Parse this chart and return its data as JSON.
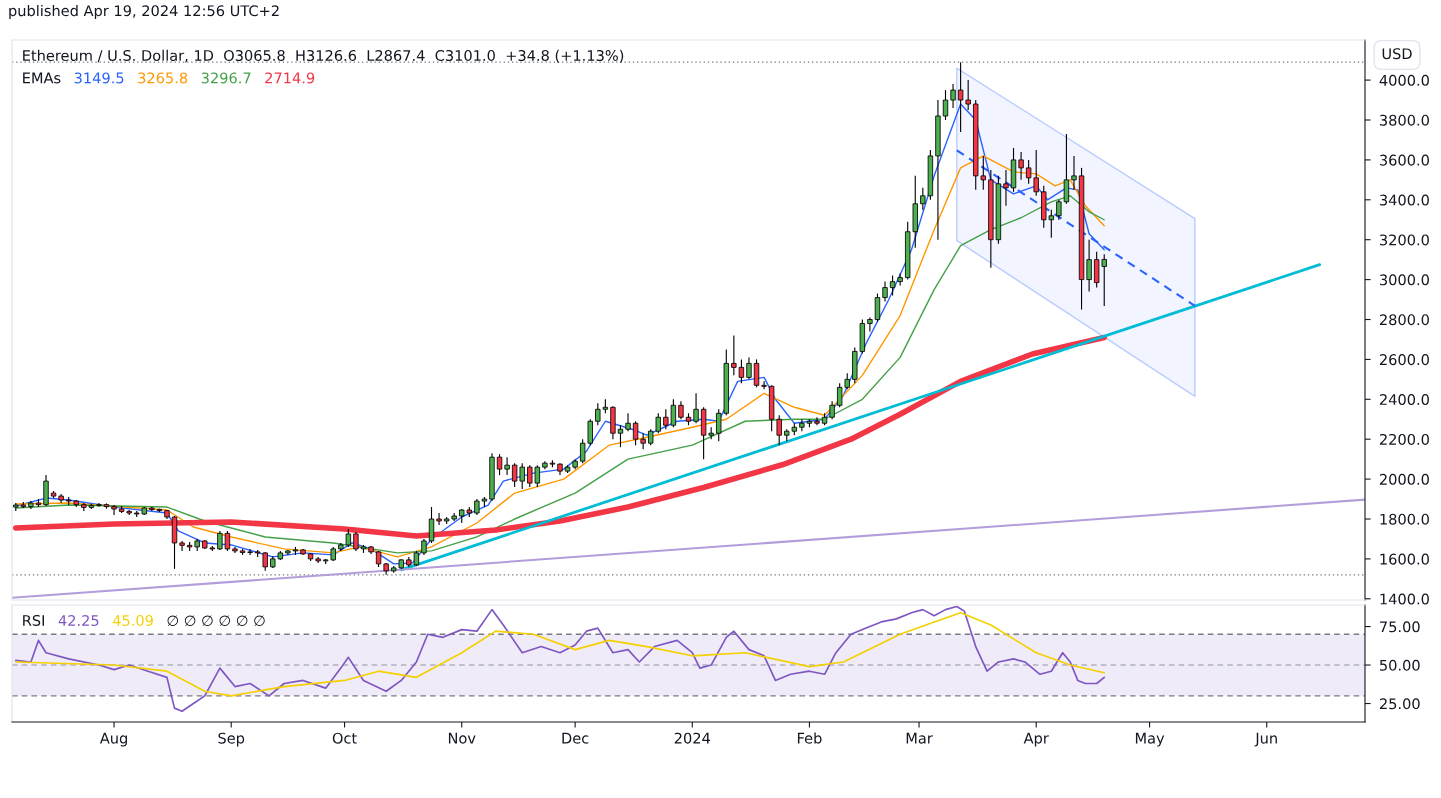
{
  "chart_data": [
    {
      "type": "candlestick",
      "title": "Ethereum / U.S. Dollar, 1D  O3065.8  H3126.6  L2867.4  C3101.0  +34.8 (+1.13%)",
      "legend_title": "EMAs",
      "legend": "top left",
      "grid": false,
      "tick_labels": "y",
      "annotations": [
        "USD",
        "published Apr 19, 2024 12:56 UTC+2"
      ],
      "xlim": [
        "2023-07-05",
        "2024-06-27"
      ],
      "ylim": [
        1394,
        4201
      ],
      "yticks": [
        {
          "value": 1400,
          "label": "1400.0"
        },
        {
          "value": 1600,
          "label": "1600.0"
        },
        {
          "value": 1800,
          "label": "1800.0"
        },
        {
          "value": 2000,
          "label": "2000.0"
        },
        {
          "value": 2200,
          "label": "2200.0"
        },
        {
          "value": 2400,
          "label": "2400.0"
        },
        {
          "value": 2600,
          "label": "2600.0"
        },
        {
          "value": 2800,
          "label": "2800.0"
        },
        {
          "value": 3000,
          "label": "3000.0"
        },
        {
          "value": 3200,
          "label": "3200.0"
        },
        {
          "value": 3400,
          "label": "3400.0"
        },
        {
          "value": 3600,
          "label": "3600.0"
        },
        {
          "value": 3800,
          "label": "3800.0"
        },
        {
          "value": 4000,
          "label": "4000.0"
        }
      ],
      "ref_lines": [
        {
          "axis": "y",
          "value": 4090,
          "line_style": "dotted",
          "color": "#787b86"
        },
        {
          "axis": "y",
          "value": 1520,
          "line_style": "dotted",
          "color": "#787b86"
        }
      ],
      "x": [
        "2023-07-06",
        "2023-07-08",
        "2023-07-10",
        "2023-07-12",
        "2023-07-14",
        "2023-07-16",
        "2023-07-18",
        "2023-07-20",
        "2023-07-22",
        "2023-07-24",
        "2023-07-26",
        "2023-07-28",
        "2023-07-30",
        "2023-08-01",
        "2023-08-03",
        "2023-08-05",
        "2023-08-07",
        "2023-08-09",
        "2023-08-11",
        "2023-08-13",
        "2023-08-15",
        "2023-08-17",
        "2023-08-19",
        "2023-08-21",
        "2023-08-23",
        "2023-08-25",
        "2023-08-27",
        "2023-08-29",
        "2023-08-31",
        "2023-09-02",
        "2023-09-04",
        "2023-09-06",
        "2023-09-08",
        "2023-09-10",
        "2023-09-12",
        "2023-09-14",
        "2023-09-16",
        "2023-09-18",
        "2023-09-20",
        "2023-09-22",
        "2023-09-24",
        "2023-09-26",
        "2023-09-28",
        "2023-09-30",
        "2023-10-02",
        "2023-10-04",
        "2023-10-06",
        "2023-10-08",
        "2023-10-10",
        "2023-10-12",
        "2023-10-14",
        "2023-10-16",
        "2023-10-18",
        "2023-10-20",
        "2023-10-22",
        "2023-10-24",
        "2023-10-26",
        "2023-10-28",
        "2023-10-30",
        "2023-11-01",
        "2023-11-03",
        "2023-11-05",
        "2023-11-07",
        "2023-11-09",
        "2023-11-11",
        "2023-11-13",
        "2023-11-15",
        "2023-11-17",
        "2023-11-19",
        "2023-11-21",
        "2023-11-23",
        "2023-11-25",
        "2023-11-27",
        "2023-11-29",
        "2023-12-01",
        "2023-12-03",
        "2023-12-05",
        "2023-12-07",
        "2023-12-09",
        "2023-12-11",
        "2023-12-13",
        "2023-12-15",
        "2023-12-17",
        "2023-12-19",
        "2023-12-21",
        "2023-12-23",
        "2023-12-25",
        "2023-12-27",
        "2023-12-29",
        "2023-12-31",
        "2024-01-02",
        "2024-01-04",
        "2024-01-06",
        "2024-01-08",
        "2024-01-10",
        "2024-01-12",
        "2024-01-14",
        "2024-01-16",
        "2024-01-18",
        "2024-01-20",
        "2024-01-22",
        "2024-01-24",
        "2024-01-26",
        "2024-01-28",
        "2024-01-30",
        "2024-02-01",
        "2024-02-03",
        "2024-02-05",
        "2024-02-07",
        "2024-02-09",
        "2024-02-11",
        "2024-02-13",
        "2024-02-15",
        "2024-02-17",
        "2024-02-19",
        "2024-02-21",
        "2024-02-23",
        "2024-02-25",
        "2024-02-27",
        "2024-02-29",
        "2024-03-02",
        "2024-03-04",
        "2024-03-06",
        "2024-03-08",
        "2024-03-10",
        "2024-03-12",
        "2024-03-14",
        "2024-03-16",
        "2024-03-18",
        "2024-03-20",
        "2024-03-22",
        "2024-03-24",
        "2024-03-26",
        "2024-03-28",
        "2024-03-30",
        "2024-04-01",
        "2024-04-03",
        "2024-04-05",
        "2024-04-07",
        "2024-04-09",
        "2024-04-11",
        "2024-04-13",
        "2024-04-15",
        "2024-04-17",
        "2024-04-19"
      ],
      "ohlc": [
        [
          1860,
          1880,
          1840,
          1870
        ],
        [
          1870,
          1885,
          1855,
          1862
        ],
        [
          1862,
          1890,
          1850,
          1880
        ],
        [
          1880,
          1900,
          1860,
          1872
        ],
        [
          1872,
          2020,
          1865,
          1990
        ],
        [
          1930,
          1940,
          1905,
          1915
        ],
        [
          1915,
          1925,
          1880,
          1895
        ],
        [
          1895,
          1910,
          1870,
          1890
        ],
        [
          1890,
          1895,
          1860,
          1872
        ],
        [
          1872,
          1880,
          1840,
          1858
        ],
        [
          1858,
          1875,
          1850,
          1868
        ],
        [
          1868,
          1880,
          1862,
          1872
        ],
        [
          1872,
          1878,
          1852,
          1862
        ],
        [
          1862,
          1870,
          1820,
          1850
        ],
        [
          1850,
          1865,
          1830,
          1838
        ],
        [
          1838,
          1845,
          1820,
          1830
        ],
        [
          1830,
          1840,
          1810,
          1825
        ],
        [
          1825,
          1860,
          1820,
          1855
        ],
        [
          1855,
          1860,
          1840,
          1848
        ],
        [
          1848,
          1852,
          1835,
          1842
        ],
        [
          1842,
          1845,
          1800,
          1810
        ],
        [
          1810,
          1815,
          1550,
          1680
        ],
        [
          1680,
          1690,
          1640,
          1668
        ],
        [
          1668,
          1685,
          1640,
          1660
        ],
        [
          1660,
          1700,
          1640,
          1690
        ],
        [
          1690,
          1695,
          1650,
          1655
        ],
        [
          1655,
          1665,
          1640,
          1650
        ],
        [
          1650,
          1740,
          1645,
          1728
        ],
        [
          1728,
          1740,
          1640,
          1650
        ],
        [
          1650,
          1660,
          1630,
          1640
        ],
        [
          1640,
          1650,
          1620,
          1632
        ],
        [
          1632,
          1650,
          1620,
          1635
        ],
        [
          1635,
          1645,
          1610,
          1630
        ],
        [
          1630,
          1635,
          1540,
          1560
        ],
        [
          1560,
          1615,
          1555,
          1600
        ],
        [
          1600,
          1640,
          1595,
          1630
        ],
        [
          1630,
          1645,
          1620,
          1640
        ],
        [
          1640,
          1660,
          1620,
          1645
        ],
        [
          1645,
          1650,
          1620,
          1625
        ],
        [
          1625,
          1630,
          1590,
          1600
        ],
        [
          1600,
          1610,
          1580,
          1590
        ],
        [
          1590,
          1600,
          1575,
          1595
        ],
        [
          1595,
          1660,
          1590,
          1650
        ],
        [
          1650,
          1680,
          1640,
          1670
        ],
        [
          1670,
          1750,
          1660,
          1725
        ],
        [
          1725,
          1735,
          1640,
          1650
        ],
        [
          1650,
          1670,
          1630,
          1660
        ],
        [
          1660,
          1665,
          1625,
          1635
        ],
        [
          1635,
          1640,
          1560,
          1575
        ],
        [
          1575,
          1580,
          1520,
          1540
        ],
        [
          1540,
          1565,
          1530,
          1555
        ],
        [
          1555,
          1600,
          1550,
          1595
        ],
        [
          1595,
          1610,
          1560,
          1570
        ],
        [
          1570,
          1640,
          1565,
          1630
        ],
        [
          1630,
          1700,
          1620,
          1690
        ],
        [
          1690,
          1860,
          1680,
          1800
        ],
        [
          1800,
          1830,
          1770,
          1790
        ],
        [
          1790,
          1810,
          1775,
          1800
        ],
        [
          1800,
          1830,
          1790,
          1815
        ],
        [
          1815,
          1850,
          1780,
          1845
        ],
        [
          1845,
          1860,
          1810,
          1830
        ],
        [
          1830,
          1900,
          1820,
          1890
        ],
        [
          1890,
          1910,
          1860,
          1900
        ],
        [
          1900,
          2130,
          1890,
          2110
        ],
        [
          2110,
          2125,
          2020,
          2050
        ],
        [
          2050,
          2110,
          2020,
          2070
        ],
        [
          2070,
          2080,
          1960,
          1990
        ],
        [
          1990,
          2080,
          1950,
          2060
        ],
        [
          2060,
          2070,
          1960,
          1980
        ],
        [
          1980,
          2070,
          1960,
          2060
        ],
        [
          2060,
          2090,
          2050,
          2080
        ],
        [
          2080,
          2095,
          2060,
          2075
        ],
        [
          2075,
          2080,
          2020,
          2040
        ],
        [
          2040,
          2070,
          2030,
          2060
        ],
        [
          2060,
          2100,
          2050,
          2090
        ],
        [
          2090,
          2200,
          2080,
          2180
        ],
        [
          2180,
          2300,
          2170,
          2290
        ],
        [
          2290,
          2380,
          2270,
          2350
        ],
        [
          2350,
          2400,
          2330,
          2360
        ],
        [
          2360,
          2365,
          2200,
          2230
        ],
        [
          2230,
          2270,
          2160,
          2250
        ],
        [
          2250,
          2330,
          2240,
          2280
        ],
        [
          2280,
          2290,
          2170,
          2200
        ],
        [
          2200,
          2230,
          2150,
          2180
        ],
        [
          2180,
          2250,
          2170,
          2240
        ],
        [
          2240,
          2330,
          2230,
          2310
        ],
        [
          2310,
          2350,
          2250,
          2270
        ],
        [
          2270,
          2400,
          2260,
          2370
        ],
        [
          2370,
          2390,
          2300,
          2310
        ],
        [
          2310,
          2330,
          2270,
          2290
        ],
        [
          2290,
          2430,
          2280,
          2350
        ],
        [
          2350,
          2360,
          2100,
          2220
        ],
        [
          2220,
          2260,
          2200,
          2230
        ],
        [
          2230,
          2350,
          2190,
          2330
        ],
        [
          2330,
          2650,
          2320,
          2580
        ],
        [
          2580,
          2720,
          2520,
          2560
        ],
        [
          2560,
          2600,
          2480,
          2510
        ],
        [
          2510,
          2610,
          2500,
          2580
        ],
        [
          2580,
          2600,
          2460,
          2470
        ],
        [
          2470,
          2490,
          2450,
          2465
        ],
        [
          2465,
          2470,
          2240,
          2300
        ],
        [
          2300,
          2320,
          2170,
          2220
        ],
        [
          2220,
          2250,
          2190,
          2240
        ],
        [
          2240,
          2280,
          2220,
          2260
        ],
        [
          2260,
          2300,
          2240,
          2280
        ],
        [
          2280,
          2300,
          2260,
          2290
        ],
        [
          2290,
          2310,
          2270,
          2280
        ],
        [
          2280,
          2330,
          2270,
          2310
        ],
        [
          2310,
          2390,
          2300,
          2370
        ],
        [
          2370,
          2480,
          2360,
          2460
        ],
        [
          2460,
          2530,
          2450,
          2500
        ],
        [
          2500,
          2660,
          2480,
          2640
        ],
        [
          2640,
          2800,
          2630,
          2780
        ],
        [
          2780,
          2810,
          2740,
          2800
        ],
        [
          2800,
          2930,
          2790,
          2910
        ],
        [
          2910,
          2990,
          2890,
          2960
        ],
        [
          2960,
          3020,
          2920,
          2990
        ],
        [
          2990,
          3030,
          2970,
          3010
        ],
        [
          3010,
          3290,
          3000,
          3240
        ],
        [
          3240,
          3520,
          3160,
          3380
        ],
        [
          3380,
          3460,
          3350,
          3420
        ],
        [
          3420,
          3650,
          3400,
          3620
        ],
        [
          3620,
          3900,
          3200,
          3820
        ],
        [
          3820,
          3950,
          3800,
          3900
        ],
        [
          3900,
          3980,
          3860,
          3950
        ],
        [
          3950,
          4090,
          3740,
          3900
        ],
        [
          3900,
          4000,
          3850,
          3880
        ],
        [
          3880,
          3900,
          3450,
          3520
        ],
        [
          3520,
          3620,
          3450,
          3500
        ],
        [
          3500,
          3550,
          3060,
          3200
        ],
        [
          3200,
          3520,
          3180,
          3480
        ],
        [
          3480,
          3550,
          3370,
          3460
        ],
        [
          3460,
          3660,
          3440,
          3600
        ],
        [
          3600,
          3640,
          3500,
          3560
        ],
        [
          3560,
          3600,
          3480,
          3510
        ],
        [
          3510,
          3650,
          3420,
          3440
        ],
        [
          3440,
          3470,
          3260,
          3300
        ],
        [
          3300,
          3350,
          3210,
          3320
        ],
        [
          3320,
          3400,
          3300,
          3390
        ],
        [
          3390,
          3730,
          3380,
          3500
        ],
        [
          3500,
          3620,
          3450,
          3520
        ],
        [
          3520,
          3560,
          2850,
          3000
        ],
        [
          3000,
          3200,
          2940,
          3100
        ],
        [
          3100,
          3140,
          2960,
          2985
        ],
        [
          3065.8,
          3126.6,
          2867.4,
          3101.0
        ]
      ],
      "series": [
        {
          "name": "3149.5",
          "color": "#2962ff",
          "type": "line",
          "x": [
            "2023-07-06",
            "2023-07-14",
            "2023-07-20",
            "2023-08-01",
            "2023-08-15",
            "2023-08-18",
            "2023-08-25",
            "2023-09-01",
            "2023-09-12",
            "2023-09-20",
            "2023-09-28",
            "2023-10-03",
            "2023-10-08",
            "2023-10-14",
            "2023-10-19",
            "2023-10-24",
            "2023-11-01",
            "2023-11-08",
            "2023-11-12",
            "2023-11-20",
            "2023-11-28",
            "2023-12-04",
            "2023-12-09",
            "2023-12-16",
            "2023-12-20",
            "2023-12-28",
            "2024-01-04",
            "2024-01-08",
            "2024-01-13",
            "2024-01-20",
            "2024-01-23",
            "2024-01-28",
            "2024-02-05",
            "2024-02-10",
            "2024-02-16",
            "2024-02-22",
            "2024-02-28",
            "2024-03-05",
            "2024-03-12",
            "2024-03-16",
            "2024-03-20",
            "2024-03-26",
            "2024-04-01",
            "2024-04-04",
            "2024-04-09",
            "2024-04-12",
            "2024-04-15",
            "2024-04-19"
          ],
          "values": [
            1865,
            1905,
            1895,
            1860,
            1830,
            1740,
            1680,
            1670,
            1610,
            1630,
            1620,
            1680,
            1650,
            1575,
            1580,
            1700,
            1810,
            1870,
            1990,
            2030,
            2050,
            2140,
            2290,
            2250,
            2220,
            2290,
            2300,
            2290,
            2490,
            2510,
            2400,
            2280,
            2300,
            2420,
            2680,
            2900,
            3150,
            3520,
            3880,
            3800,
            3500,
            3430,
            3470,
            3400,
            3460,
            3450,
            3230,
            3150
          ]
        },
        {
          "name": "3265.8",
          "color": "#ff9800",
          "type": "line",
          "x": [
            "2023-07-06",
            "2023-07-20",
            "2023-08-15",
            "2023-08-22",
            "2023-09-01",
            "2023-09-15",
            "2023-09-28",
            "2023-10-05",
            "2023-10-15",
            "2023-10-24",
            "2023-11-05",
            "2023-11-15",
            "2023-11-28",
            "2023-12-10",
            "2023-12-20",
            "2024-01-01",
            "2024-01-10",
            "2024-01-20",
            "2024-01-28",
            "2024-02-05",
            "2024-02-15",
            "2024-02-25",
            "2024-03-05",
            "2024-03-12",
            "2024-03-18",
            "2024-03-26",
            "2024-04-01",
            "2024-04-06",
            "2024-04-10",
            "2024-04-14",
            "2024-04-19"
          ],
          "values": [
            1875,
            1880,
            1845,
            1760,
            1710,
            1650,
            1630,
            1660,
            1610,
            1660,
            1780,
            1930,
            2000,
            2170,
            2210,
            2260,
            2300,
            2430,
            2360,
            2320,
            2520,
            2820,
            3250,
            3560,
            3620,
            3540,
            3530,
            3470,
            3500,
            3370,
            3270
          ]
        },
        {
          "name": "3296.7",
          "color": "#43a047",
          "type": "line",
          "x": [
            "2023-07-06",
            "2023-07-20",
            "2023-08-15",
            "2023-08-25",
            "2023-09-10",
            "2023-09-28",
            "2023-10-15",
            "2023-10-24",
            "2023-11-05",
            "2023-11-15",
            "2023-12-01",
            "2023-12-15",
            "2024-01-01",
            "2024-01-15",
            "2024-01-28",
            "2024-02-05",
            "2024-02-15",
            "2024-02-25",
            "2024-03-05",
            "2024-03-12",
            "2024-03-20",
            "2024-03-28",
            "2024-04-05",
            "2024-04-10",
            "2024-04-15",
            "2024-04-19"
          ],
          "values": [
            1855,
            1870,
            1860,
            1790,
            1710,
            1680,
            1630,
            1640,
            1710,
            1800,
            1930,
            2100,
            2170,
            2290,
            2300,
            2300,
            2400,
            2610,
            2950,
            3170,
            3250,
            3310,
            3390,
            3420,
            3340,
            3300
          ]
        },
        {
          "name": "2714.9",
          "color": "#f23645",
          "type": "line",
          "x": [
            "2023-07-06",
            "2023-08-01",
            "2023-09-01",
            "2023-10-01",
            "2023-10-20",
            "2023-11-10",
            "2023-11-27",
            "2023-12-15",
            "2024-01-04",
            "2024-01-25",
            "2024-02-12",
            "2024-02-25",
            "2024-03-12",
            "2024-03-31",
            "2024-04-19"
          ],
          "values": [
            1755,
            1775,
            1785,
            1750,
            1715,
            1745,
            1790,
            1860,
            1958,
            2073,
            2200,
            2325,
            2490,
            2627,
            2710
          ]
        },
        {
          "color": "#00bcd4",
          "type": "line",
          "x": [
            "2023-10-16",
            "2024-06-15"
          ],
          "values": [
            1545,
            3075
          ]
        },
        {
          "color": "#b39ddb",
          "type": "line",
          "x": [
            "2023-07-05",
            "2024-06-27"
          ],
          "values": [
            1405,
            1897
          ]
        },
        {
          "color": "#2962ff",
          "type": "line",
          "line_style": "dashed",
          "x": [
            "2024-03-11",
            "2024-05-13"
          ],
          "values": [
            3648,
            2868
          ],
          "lower": [
            3195,
            2415
          ],
          "upper": [
            4060,
            3306
          ]
        }
      ]
    },
    {
      "type": "line",
      "legend_title": "RSI",
      "legend": "top left",
      "grid": false,
      "annotations": [
        "∅ ∅ ∅ ∅ ∅ ∅"
      ],
      "xlim": [
        "2023-07-05",
        "2024-06-27"
      ],
      "xticks": [
        {
          "value": "2023-08-01",
          "label": "Aug"
        },
        {
          "value": "2023-09-01",
          "label": "Sep"
        },
        {
          "value": "2023-10-01",
          "label": "Oct"
        },
        {
          "value": "2023-11-01",
          "label": "Nov"
        },
        {
          "value": "2023-12-01",
          "label": "Dec"
        },
        {
          "value": "2024-01-01",
          "label": "2024"
        },
        {
          "value": "2024-02-01",
          "label": "Feb"
        },
        {
          "value": "2024-03-01",
          "label": "Mar"
        },
        {
          "value": "2024-04-01",
          "label": "Apr"
        },
        {
          "value": "2024-05-01",
          "label": "May"
        },
        {
          "value": "2024-06-01",
          "label": "Jun"
        }
      ],
      "ylim": [
        13,
        89
      ],
      "yticks": [
        {
          "value": 25,
          "label": "25.00"
        },
        {
          "value": 50,
          "label": "50.00"
        },
        {
          "value": 75,
          "label": "75.00"
        }
      ],
      "ref_lines": [
        {
          "axis": "y",
          "value": 70,
          "line_style": "dashed",
          "color": "#787b86"
        },
        {
          "axis": "y",
          "value": 50,
          "line_style": "dashed",
          "color": "#b0b3bd"
        },
        {
          "axis": "y",
          "value": 30,
          "line_style": "dashed",
          "color": "#787b86"
        }
      ],
      "bands": [
        {
          "axis": "y",
          "from": 30,
          "to": 70,
          "color": "#7e57c2"
        }
      ],
      "series": [
        {
          "name": "42.25",
          "color": "#7e57c2",
          "x": [
            "2023-07-06",
            "2023-07-10",
            "2023-07-12",
            "2023-07-14",
            "2023-07-20",
            "2023-07-28",
            "2023-08-01",
            "2023-08-05",
            "2023-08-10",
            "2023-08-15",
            "2023-08-17",
            "2023-08-19",
            "2023-08-22",
            "2023-08-25",
            "2023-08-29",
            "2023-09-02",
            "2023-09-06",
            "2023-09-11",
            "2023-09-15",
            "2023-09-20",
            "2023-09-26",
            "2023-09-30",
            "2023-10-02",
            "2023-10-06",
            "2023-10-12",
            "2023-10-16",
            "2023-10-20",
            "2023-10-23",
            "2023-10-27",
            "2023-11-01",
            "2023-11-05",
            "2023-11-09",
            "2023-11-12",
            "2023-11-17",
            "2023-11-22",
            "2023-11-27",
            "2023-12-01",
            "2023-12-04",
            "2023-12-07",
            "2023-12-11",
            "2023-12-15",
            "2023-12-18",
            "2023-12-22",
            "2023-12-28",
            "2024-01-01",
            "2024-01-03",
            "2024-01-06",
            "2024-01-10",
            "2024-01-12",
            "2024-01-16",
            "2024-01-20",
            "2024-01-23",
            "2024-01-27",
            "2024-02-01",
            "2024-02-05",
            "2024-02-08",
            "2024-02-12",
            "2024-02-16",
            "2024-02-20",
            "2024-02-24",
            "2024-02-28",
            "2024-03-02",
            "2024-03-05",
            "2024-03-08",
            "2024-03-11",
            "2024-03-13",
            "2024-03-16",
            "2024-03-19",
            "2024-03-22",
            "2024-03-26",
            "2024-03-29",
            "2024-04-02",
            "2024-04-05",
            "2024-04-08",
            "2024-04-10",
            "2024-04-12",
            "2024-04-14",
            "2024-04-17",
            "2024-04-19"
          ],
          "values": [
            53,
            52,
            66,
            58,
            54,
            50,
            47,
            50,
            46,
            42,
            22,
            20,
            25,
            30,
            48,
            36,
            38,
            30,
            38,
            40,
            35,
            48,
            55,
            40,
            33,
            40,
            52,
            70,
            68,
            73,
            72,
            86,
            76,
            58,
            62,
            58,
            63,
            72,
            74,
            58,
            60,
            52,
            62,
            66,
            58,
            48,
            50,
            68,
            72,
            60,
            56,
            40,
            44,
            46,
            44,
            58,
            70,
            74,
            78,
            80,
            84,
            86,
            82,
            86,
            88,
            85,
            62,
            46,
            52,
            54,
            52,
            44,
            46,
            58,
            52,
            40,
            38,
            38,
            42
          ]
        },
        {
          "name": "45.09",
          "color": "#f5d000",
          "x": [
            "2023-07-06",
            "2023-08-01",
            "2023-08-15",
            "2023-08-25",
            "2023-09-01",
            "2023-09-15",
            "2023-10-01",
            "2023-10-10",
            "2023-10-20",
            "2023-11-01",
            "2023-11-10",
            "2023-11-20",
            "2023-12-01",
            "2023-12-10",
            "2023-12-20",
            "2024-01-01",
            "2024-01-15",
            "2024-02-01",
            "2024-02-10",
            "2024-02-25",
            "2024-03-05",
            "2024-03-12",
            "2024-03-20",
            "2024-04-01",
            "2024-04-10",
            "2024-04-19"
          ],
          "values": [
            52,
            50,
            46,
            33,
            30,
            36,
            40,
            46,
            42,
            58,
            72,
            70,
            60,
            66,
            62,
            56,
            58,
            49,
            52,
            70,
            78,
            84,
            76,
            58,
            50,
            45
          ]
        }
      ]
    }
  ]
}
